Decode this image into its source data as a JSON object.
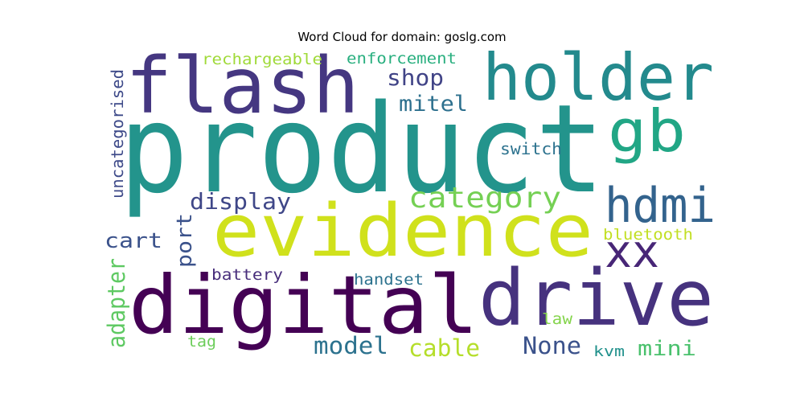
{
  "chart_data": {
    "type": "wordcloud",
    "title": "Word Cloud for domain: goslg.com",
    "background": "#ffffff",
    "words": [
      {
        "text": "product",
        "color": "#23948c"
      },
      {
        "text": "flash",
        "color": "#453781"
      },
      {
        "text": "holder",
        "color": "#238a8d"
      },
      {
        "text": "gb",
        "color": "#21a685"
      },
      {
        "text": "evidence",
        "color": "#d0e11c"
      },
      {
        "text": "digital",
        "color": "#440154"
      },
      {
        "text": "drive",
        "color": "#46327e"
      },
      {
        "text": "hdmi",
        "color": "#33638d"
      },
      {
        "text": "xx",
        "color": "#482677"
      },
      {
        "text": "category",
        "color": "#75d054"
      },
      {
        "text": "display",
        "color": "#3f4788"
      },
      {
        "text": "shop",
        "color": "#414487"
      },
      {
        "text": "mitel",
        "color": "#2d708e"
      },
      {
        "text": "rechargeable",
        "color": "#a0da39"
      },
      {
        "text": "enforcement",
        "color": "#29af7f"
      },
      {
        "text": "uncategorised",
        "color": "#3e4a89"
      },
      {
        "text": "switch",
        "color": "#2c728e"
      },
      {
        "text": "cart",
        "color": "#3b528b"
      },
      {
        "text": "port",
        "color": "#3b528b"
      },
      {
        "text": "adapter",
        "color": "#5ec962"
      },
      {
        "text": "bluetooth",
        "color": "#c2df23"
      },
      {
        "text": "battery",
        "color": "#472d7b"
      },
      {
        "text": "handset",
        "color": "#2c728e"
      },
      {
        "text": "model",
        "color": "#2c728e"
      },
      {
        "text": "cable",
        "color": "#b5de2b"
      },
      {
        "text": "None",
        "color": "#3b528b"
      },
      {
        "text": "mini",
        "color": "#4ac16d"
      },
      {
        "text": "law",
        "color": "#84d44b"
      },
      {
        "text": "kvm",
        "color": "#21918c"
      },
      {
        "text": "tag",
        "color": "#6ccd5a"
      }
    ]
  }
}
